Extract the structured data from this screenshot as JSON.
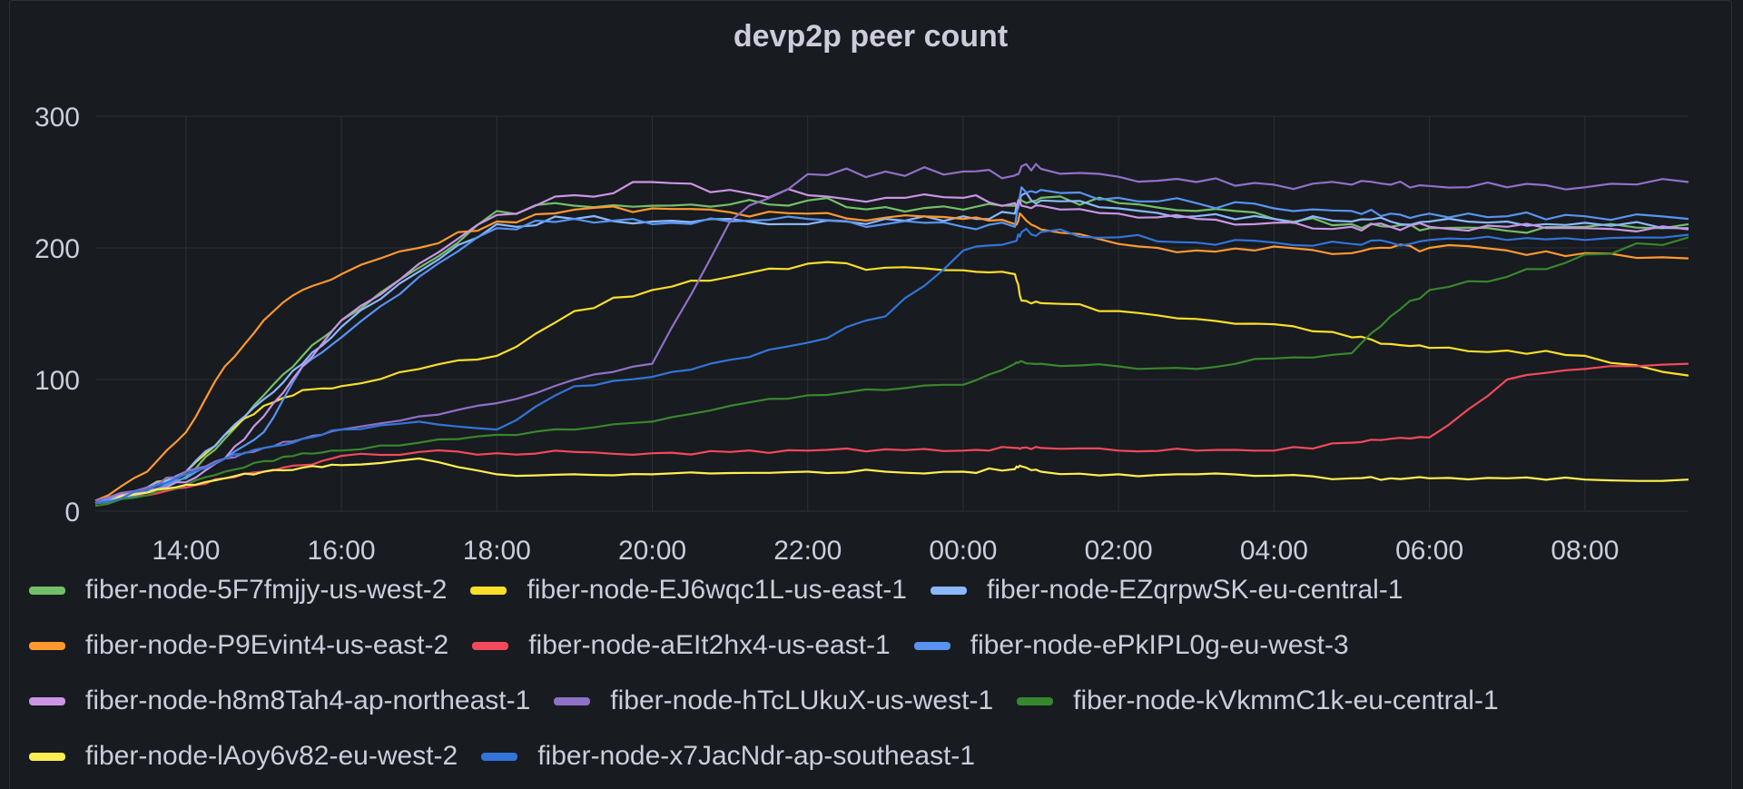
{
  "panel": {
    "title": "devp2p peer count"
  },
  "chart_data": {
    "type": "line",
    "title": "devp2p peer count",
    "xlabel": "",
    "ylabel": "",
    "x_unit": "time (HH:MM, start at 12:50)",
    "x_ticks": [
      "14:00",
      "16:00",
      "18:00",
      "20:00",
      "22:00",
      "00:00",
      "02:00",
      "04:00",
      "06:00",
      "08:00"
    ],
    "y_ticks": [
      "0",
      "100",
      "200",
      "300"
    ],
    "ylim": [
      0,
      300
    ],
    "grid": true,
    "legend_position": "bottom",
    "x": [
      "12:50",
      "13:30",
      "14:00",
      "14:30",
      "15:00",
      "15:30",
      "16:00",
      "17:00",
      "18:00",
      "19:00",
      "20:00",
      "21:00",
      "22:00",
      "23:00",
      "00:00",
      "00:40",
      "00:45",
      "01:00",
      "02:00",
      "03:00",
      "04:00",
      "05:00",
      "05:30",
      "06:00",
      "07:00",
      "08:00",
      "09:20"
    ],
    "series": [
      {
        "name": "fiber-node-5F7fmjjy-us-west-2",
        "color": "#73bf69",
        "values": [
          6,
          15,
          26,
          55,
          88,
          118,
          145,
          185,
          228,
          232,
          232,
          233,
          236,
          231,
          229,
          232,
          236,
          238,
          234,
          228,
          222,
          218,
          216,
          215,
          213,
          216,
          218
        ]
      },
      {
        "name": "fiber-node-EJ6wqc1L-us-east-1",
        "color": "#fade2a",
        "values": [
          6,
          18,
          30,
          58,
          80,
          92,
          95,
          108,
          118,
          152,
          168,
          178,
          188,
          185,
          183,
          180,
          160,
          158,
          152,
          146,
          142,
          132,
          127,
          124,
          122,
          118,
          103
        ]
      },
      {
        "name": "fiber-node-EZqrpwSK-eu-central-1",
        "color": "#8ab8ff",
        "values": [
          6,
          18,
          30,
          58,
          85,
          112,
          140,
          182,
          218,
          222,
          220,
          222,
          218,
          222,
          224,
          226,
          240,
          236,
          230,
          224,
          222,
          220,
          220,
          220,
          220,
          219,
          215
        ]
      },
      {
        "name": "fiber-node-P9Evint4-us-east-2",
        "color": "#ff9830",
        "values": [
          8,
          30,
          60,
          110,
          145,
          168,
          180,
          200,
          220,
          229,
          230,
          227,
          226,
          223,
          222,
          218,
          225,
          214,
          203,
          198,
          201,
          196,
          200,
          200,
          198,
          196,
          192
        ]
      },
      {
        "name": "fiber-node-aEIt2hx4-us-east-1",
        "color": "#f2495c",
        "values": [
          6,
          12,
          18,
          25,
          30,
          35,
          42,
          45,
          44,
          45,
          44,
          45,
          46,
          47,
          46,
          48,
          48,
          48,
          46,
          46,
          46,
          52,
          55,
          56,
          100,
          108,
          112
        ]
      },
      {
        "name": "fiber-node-ePkIPL0g-eu-west-3",
        "color": "#5794f2",
        "values": [
          6,
          15,
          25,
          40,
          60,
          110,
          132,
          178,
          215,
          222,
          218,
          220,
          222,
          218,
          216,
          216,
          246,
          244,
          238,
          234,
          230,
          228,
          226,
          226,
          224,
          224,
          222
        ]
      },
      {
        "name": "fiber-node-h8m8Tah4-ap-northeast-1",
        "color": "#ca95e5",
        "values": [
          8,
          16,
          22,
          40,
          72,
          110,
          145,
          188,
          225,
          240,
          250,
          244,
          240,
          238,
          238,
          234,
          232,
          232,
          226,
          222,
          219,
          216,
          216,
          216,
          216,
          215,
          214
        ]
      },
      {
        "name": "fiber-node-hTcLUkuX-us-west-1",
        "color": "#8f70c7",
        "values": [
          8,
          18,
          30,
          40,
          48,
          55,
          62,
          72,
          82,
          100,
          112,
          220,
          256,
          258,
          258,
          255,
          262,
          260,
          254,
          250,
          248,
          248,
          248,
          247,
          246,
          246,
          250
        ]
      },
      {
        "name": "fiber-node-kVkmmC1k-eu-central-1",
        "color": "#37872d",
        "values": [
          4,
          12,
          20,
          30,
          38,
          44,
          46,
          52,
          58,
          62,
          68,
          80,
          88,
          92,
          96,
          112,
          114,
          112,
          110,
          108,
          116,
          120,
          148,
          168,
          178,
          195,
          208
        ]
      },
      {
        "name": "fiber-node-lAoy6v82-eu-west-2",
        "color": "#ffee52",
        "values": [
          6,
          14,
          20,
          25,
          30,
          33,
          35,
          40,
          28,
          28,
          28,
          29,
          30,
          30,
          30,
          32,
          34,
          30,
          28,
          28,
          27,
          25,
          25,
          25,
          25,
          24,
          24
        ]
      },
      {
        "name": "fiber-node-x7JacNdr-ap-southeast-1",
        "color": "#3274d9",
        "values": [
          6,
          16,
          28,
          40,
          48,
          55,
          62,
          68,
          62,
          95,
          102,
          115,
          128,
          148,
          198,
          205,
          212,
          212,
          208,
          204,
          204,
          203,
          204,
          206,
          206,
          206,
          210
        ]
      }
    ]
  }
}
